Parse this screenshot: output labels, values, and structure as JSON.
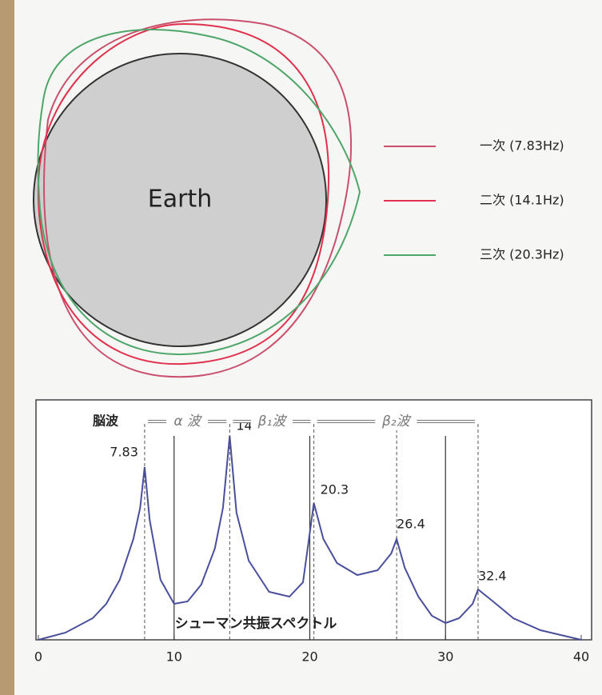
{
  "diagram": {
    "earth_label": "Earth",
    "modes": [
      {
        "name": "一次 (7.83Hz)",
        "color": "#c8506c"
      },
      {
        "name": "二次 (14.1Hz)",
        "color": "#e0304c"
      },
      {
        "name": "三次 (20.3Hz)",
        "color": "#4fa66a"
      }
    ]
  },
  "chart_data": {
    "type": "line",
    "title": "シューマン共振スペクトル",
    "band_title": "脳波",
    "color": "#4a4f9c",
    "xlim": [
      0,
      40
    ],
    "xticks": [
      0,
      10,
      20,
      30,
      40
    ],
    "ylim": [
      0,
      10
    ],
    "grid_x": true,
    "x": [
      0,
      2,
      4,
      5,
      6,
      7,
      7.5,
      7.83,
      8.2,
      9,
      10,
      11,
      12,
      13,
      13.6,
      14.1,
      14.6,
      15.5,
      17,
      18.5,
      19.5,
      20.3,
      21,
      22,
      23.5,
      25,
      26,
      26.4,
      27,
      28,
      29,
      30,
      31,
      32,
      32.4,
      33.5,
      35,
      37,
      40
    ],
    "values": [
      0,
      0.3,
      0.9,
      1.5,
      2.5,
      4.2,
      5.5,
      7.2,
      5.0,
      2.5,
      1.5,
      1.6,
      2.3,
      3.8,
      5.5,
      8.5,
      5.3,
      3.3,
      2.0,
      1.8,
      2.4,
      5.7,
      4.2,
      3.2,
      2.7,
      2.9,
      3.6,
      4.2,
      3.0,
      1.8,
      1.0,
      0.7,
      0.9,
      1.5,
      2.1,
      1.6,
      0.9,
      0.4,
      0
    ],
    "peaks": [
      7.83,
      14.1,
      20.3,
      26.4,
      32.4
    ],
    "bands": [
      {
        "label": "α 波",
        "range": [
          7.83,
          14.1
        ]
      },
      {
        "label": "β₁波",
        "range": [
          14.1,
          20.3
        ]
      },
      {
        "label": "β₂波",
        "range": [
          20.3,
          32.4
        ]
      }
    ]
  }
}
